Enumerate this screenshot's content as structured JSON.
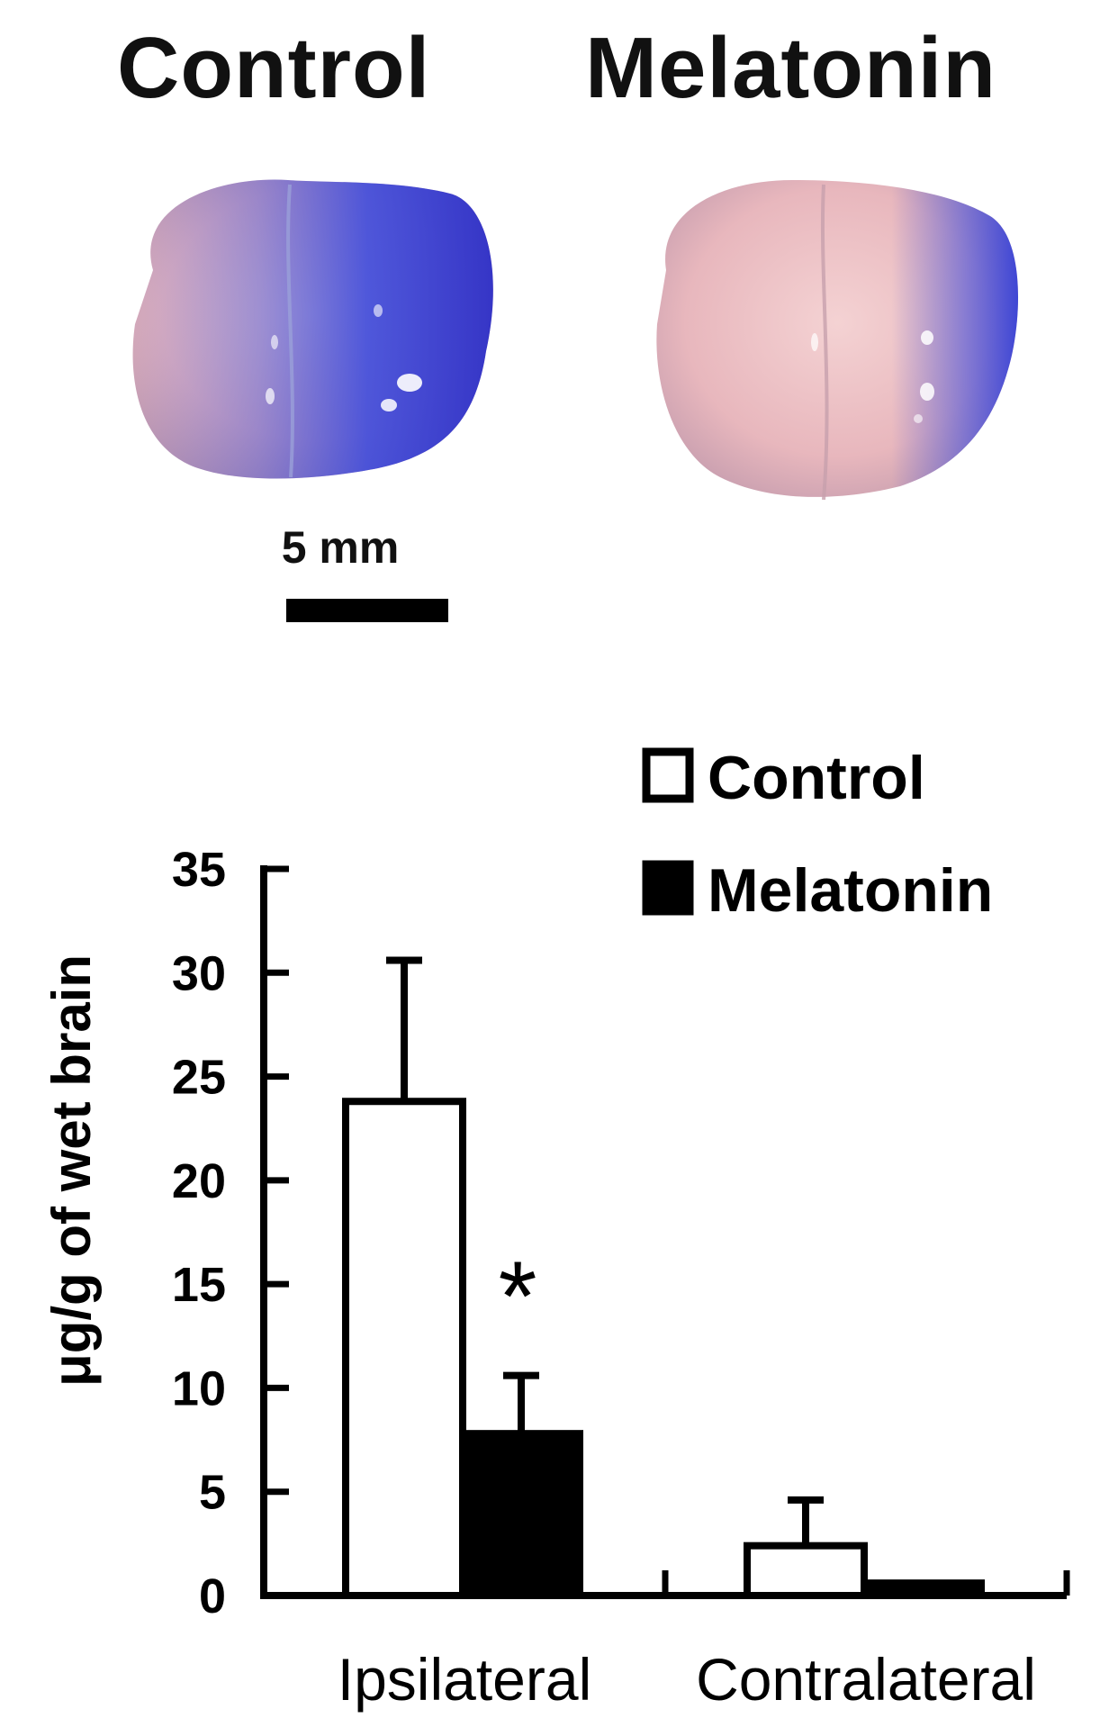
{
  "photos": {
    "left_title": "Control",
    "right_title": "Melatonin",
    "scale_bar_label": "5 mm"
  },
  "chart_data": {
    "type": "bar",
    "categories": [
      "Ipsilateral",
      "Contralateral"
    ],
    "series": [
      {
        "name": "Control",
        "values": [
          23.8,
          2.4
        ],
        "errors": [
          6.8,
          2.2
        ],
        "color": "#ffffff"
      },
      {
        "name": "Melatonin",
        "values": [
          7.8,
          0.6
        ],
        "errors": [
          2.8,
          0.0
        ],
        "color": "#000000"
      }
    ],
    "ylabel": "μg/g of wet brain",
    "ylim": [
      0,
      35
    ],
    "yticks": [
      0,
      5,
      10,
      15,
      20,
      25,
      30,
      35
    ],
    "legend_position": "top-right",
    "annotations": [
      {
        "text": "*",
        "category": "Ipsilateral",
        "series": "Melatonin"
      }
    ],
    "grid": false
  },
  "colors": {
    "dye_blue": "#3b4ad8",
    "tissue_pink": "#e8b7bd"
  }
}
